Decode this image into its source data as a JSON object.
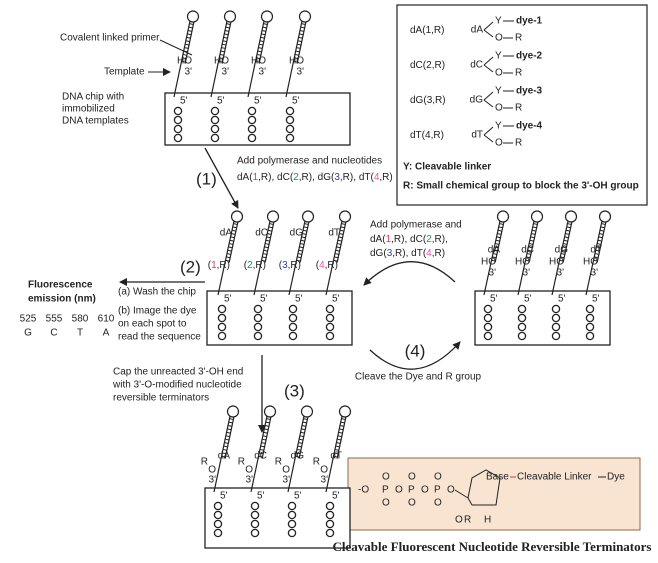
{
  "primer_label": "Covalent linked primer",
  "template_label": "Template",
  "chip_label": [
    "DNA chip with",
    "immobilized",
    "DNA templates"
  ],
  "strand": {
    "ho": "HO",
    "three": "3'",
    "five": "5'",
    "r": "R",
    "o": "O"
  },
  "nucleotides": [
    {
      "base": "dA",
      "number": "1",
      "dye": "dye-1",
      "color": "#e8375f"
    },
    {
      "base": "dC",
      "number": "2",
      "dye": "dye-2",
      "color": "#1f9a3c"
    },
    {
      "base": "dG",
      "number": "3",
      "dye": "dye-3",
      "color": "#2b43a6"
    },
    {
      "base": "dT",
      "number": "4",
      "dye": "dye-4",
      "color": "#e05a9c"
    }
  ],
  "punct": {
    "open": "(",
    "close": ",R)",
    "sep": ", "
  },
  "legend": {
    "linker": "Y",
    "oxygen": "O",
    "group": "R",
    "notes": [
      "Y: Cleavable linker",
      "R: Small chemical group to block the 3'-OH group"
    ]
  },
  "step1": {
    "number": "(1)",
    "text": "Add polymerase and nucleotides"
  },
  "step2": {
    "number": "(2)",
    "lines": [
      "(a) Wash the chip",
      "(b) Image the dye",
      "on each spot to",
      "read the sequence"
    ]
  },
  "fluorescence": {
    "title": [
      "Fluorescence",
      "emission (nm)"
    ],
    "wavelengths": [
      "525",
      "555",
      "580",
      "610"
    ],
    "bases": [
      {
        "text": "G",
        "color": "#2b6fc9"
      },
      {
        "text": "C",
        "color": "#1f9a3c"
      },
      {
        "text": "T",
        "color": "#e8375f"
      },
      {
        "text": "A",
        "color": "#e8375f"
      }
    ]
  },
  "step3": {
    "number": "(3)",
    "lines": [
      "Cap the unreacted 3'-OH end",
      "with 3'-O-modified nucleotide",
      "reversible terminators"
    ]
  },
  "step4": {
    "number": "(4)",
    "text": "Cleave the Dye and R group"
  },
  "right_text": "Add polymerase and",
  "structure": {
    "o_minus": "-O",
    "p": "P",
    "o": "O",
    "base": "Base",
    "linker": "Cleavable Linker",
    "dye": "Dye",
    "or_o": "O",
    "or_r": "R",
    "h": "H"
  },
  "caption": "Cleavable Fluorescent Nucleotide Reversible Terminators"
}
